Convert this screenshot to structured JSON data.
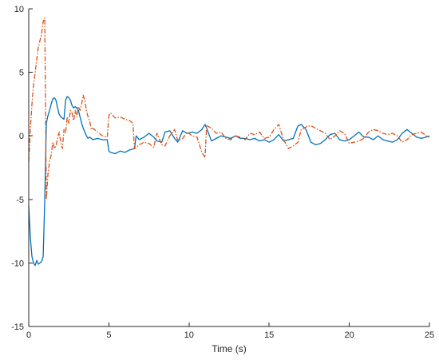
{
  "chart_data": {
    "type": "line",
    "title": "",
    "xlabel": "Time (s)",
    "ylabel": "",
    "xlim": [
      0,
      25
    ],
    "ylim": [
      -15,
      10
    ],
    "xticks": [
      0,
      5,
      10,
      15,
      20,
      25
    ],
    "yticks": [
      -15,
      -10,
      -5,
      0,
      5,
      10
    ],
    "grid": false,
    "legend": "none",
    "series": [
      {
        "color": "#0072BD",
        "line_style": "solid",
        "x": [
          0,
          0.1,
          0.2,
          0.3,
          0.4,
          0.5,
          0.6,
          0.7,
          0.8,
          0.9,
          1.0,
          1.1,
          1.2,
          1.3,
          1.4,
          1.5,
          1.6,
          1.7,
          1.8,
          1.9,
          2.0,
          2.1,
          2.2,
          2.3,
          2.4,
          2.5,
          2.6,
          2.7,
          2.8,
          2.9,
          3.0,
          3.1,
          3.2,
          3.3,
          3.4,
          3.5,
          3.6,
          3.7,
          3.8,
          3.9,
          4.0,
          4.3,
          4.6,
          4.9,
          5.0,
          5.1,
          5.4,
          5.7,
          6.0,
          6.3,
          6.6,
          6.7,
          6.9,
          7.2,
          7.5,
          7.8,
          8.0,
          8.3,
          8.5,
          8.8,
          9.1,
          9.3,
          9.6,
          9.9,
          10.2,
          10.5,
          10.8,
          11.0,
          11.1,
          11.4,
          11.7,
          12.0,
          12.3,
          12.6,
          12.9,
          13.2,
          13.5,
          13.8,
          14.1,
          14.4,
          14.7,
          15.0,
          15.3,
          15.6,
          15.9,
          16.2,
          16.5,
          16.8,
          17.0,
          17.3,
          17.6,
          17.9,
          18.2,
          18.5,
          18.8,
          19.1,
          19.4,
          19.7,
          20.0,
          20.3,
          20.6,
          20.9,
          21.2,
          21.5,
          21.8,
          22.1,
          22.4,
          22.7,
          23.0,
          23.3,
          23.6,
          23.9,
          24.2,
          24.5,
          24.8,
          25.0
        ],
        "y": [
          -5.5,
          -8.0,
          -9.5,
          -10.0,
          -10.2,
          -9.8,
          -10.1,
          -10.0,
          -9.9,
          -9.5,
          -5.0,
          1.0,
          1.6,
          2.0,
          2.5,
          2.9,
          3.0,
          2.8,
          2.2,
          1.7,
          1.5,
          1.4,
          1.3,
          2.8,
          3.1,
          3.0,
          2.8,
          2.4,
          2.2,
          2.3,
          2.2,
          2.0,
          1.5,
          1.0,
          0.6,
          0.3,
          0.0,
          -0.2,
          -0.1,
          -0.2,
          -0.3,
          -0.2,
          -0.3,
          -0.3,
          -1.2,
          -1.3,
          -1.4,
          -1.2,
          -1.3,
          -1.1,
          -1.0,
          0.0,
          -0.3,
          -0.1,
          0.2,
          -0.1,
          -0.4,
          -0.5,
          0.3,
          0.4,
          -0.2,
          -0.5,
          0.4,
          0.2,
          0.3,
          0.2,
          0.5,
          0.9,
          0.6,
          -0.4,
          -0.2,
          0.0,
          -0.1,
          -0.2,
          0.0,
          -0.2,
          -0.2,
          -0.3,
          -0.2,
          -0.4,
          -0.3,
          -0.5,
          -0.3,
          0.1,
          -0.4,
          -0.3,
          -0.2,
          0.8,
          0.9,
          0.5,
          -0.5,
          -0.7,
          -0.6,
          -0.3,
          0.1,
          0.2,
          -0.3,
          -0.4,
          -0.3,
          0.0,
          0.3,
          -0.1,
          -0.1,
          -0.3,
          0.0,
          -0.3,
          -0.4,
          -0.5,
          -0.3,
          0.2,
          0.5,
          0.2,
          -0.1,
          -0.2,
          -0.1,
          0.0
        ]
      },
      {
        "color": "#D95319",
        "line_style": "dash-dot",
        "x": [
          0,
          0.1,
          0.2,
          0.3,
          0.4,
          0.5,
          0.6,
          0.7,
          0.8,
          0.9,
          1.0,
          1.1,
          1.2,
          1.3,
          1.4,
          1.5,
          1.6,
          1.7,
          1.8,
          1.9,
          2.0,
          2.1,
          2.2,
          2.3,
          2.4,
          2.5,
          2.6,
          2.7,
          2.8,
          2.9,
          3.0,
          3.1,
          3.2,
          3.3,
          3.4,
          3.5,
          3.6,
          3.7,
          3.8,
          3.9,
          4.0,
          4.3,
          4.6,
          4.9,
          5.0,
          5.1,
          5.4,
          5.7,
          6.0,
          6.3,
          6.5,
          6.6,
          6.9,
          7.2,
          7.5,
          7.8,
          8.0,
          8.3,
          8.5,
          8.8,
          9.1,
          9.3,
          9.6,
          9.9,
          10.2,
          10.5,
          10.8,
          11.0,
          11.1,
          11.4,
          11.7,
          12.0,
          12.3,
          12.6,
          12.9,
          13.2,
          13.5,
          13.8,
          14.1,
          14.4,
          14.7,
          15.0,
          15.3,
          15.6,
          15.9,
          16.2,
          16.5,
          16.8,
          17.0,
          17.3,
          17.6,
          17.9,
          18.2,
          18.5,
          18.8,
          19.1,
          19.4,
          19.7,
          20.0,
          20.3,
          20.6,
          20.9,
          21.2,
          21.5,
          21.8,
          22.1,
          22.4,
          22.7,
          23.0,
          23.3,
          23.6,
          23.9,
          24.2,
          24.5,
          24.8,
          25.0
        ],
        "y": [
          -2.0,
          0.5,
          2.5,
          4.0,
          5.0,
          6.0,
          7.0,
          7.5,
          8.0,
          9.0,
          9.3,
          -5.0,
          -3.0,
          -2.0,
          -1.5,
          -0.5,
          -1.0,
          -0.8,
          -0.2,
          0.3,
          -0.5,
          -1.0,
          0.5,
          0.2,
          1.5,
          1.0,
          2.0,
          1.8,
          1.2,
          2.0,
          1.5,
          2.3,
          2.0,
          2.5,
          3.2,
          2.8,
          2.0,
          1.5,
          1.2,
          0.5,
          0.6,
          0.3,
          0.0,
          -0.1,
          1.6,
          1.8,
          1.4,
          1.5,
          1.3,
          1.2,
          1.0,
          -1.0,
          -0.7,
          -0.5,
          -0.6,
          -0.9,
          0.2,
          -0.7,
          -0.8,
          0.0,
          0.5,
          -0.4,
          -0.2,
          0.3,
          0.0,
          -0.1,
          -1.3,
          -1.7,
          0.8,
          0.6,
          0.2,
          0.3,
          -0.2,
          -0.3,
          0.0,
          -0.1,
          -0.3,
          0.2,
          0.1,
          0.3,
          -0.2,
          -0.1,
          0.5,
          0.9,
          -0.3,
          -1.0,
          -0.8,
          -0.5,
          0.5,
          0.7,
          0.8,
          0.6,
          0.4,
          0.2,
          -0.3,
          0.0,
          0.4,
          0.2,
          -0.6,
          -0.5,
          -0.4,
          -0.2,
          0.3,
          0.5,
          0.4,
          0.2,
          0.1,
          0.2,
          0.0,
          -0.5,
          -0.3,
          0.1,
          0.2,
          0.3,
          0.0,
          -0.1
        ]
      }
    ]
  }
}
